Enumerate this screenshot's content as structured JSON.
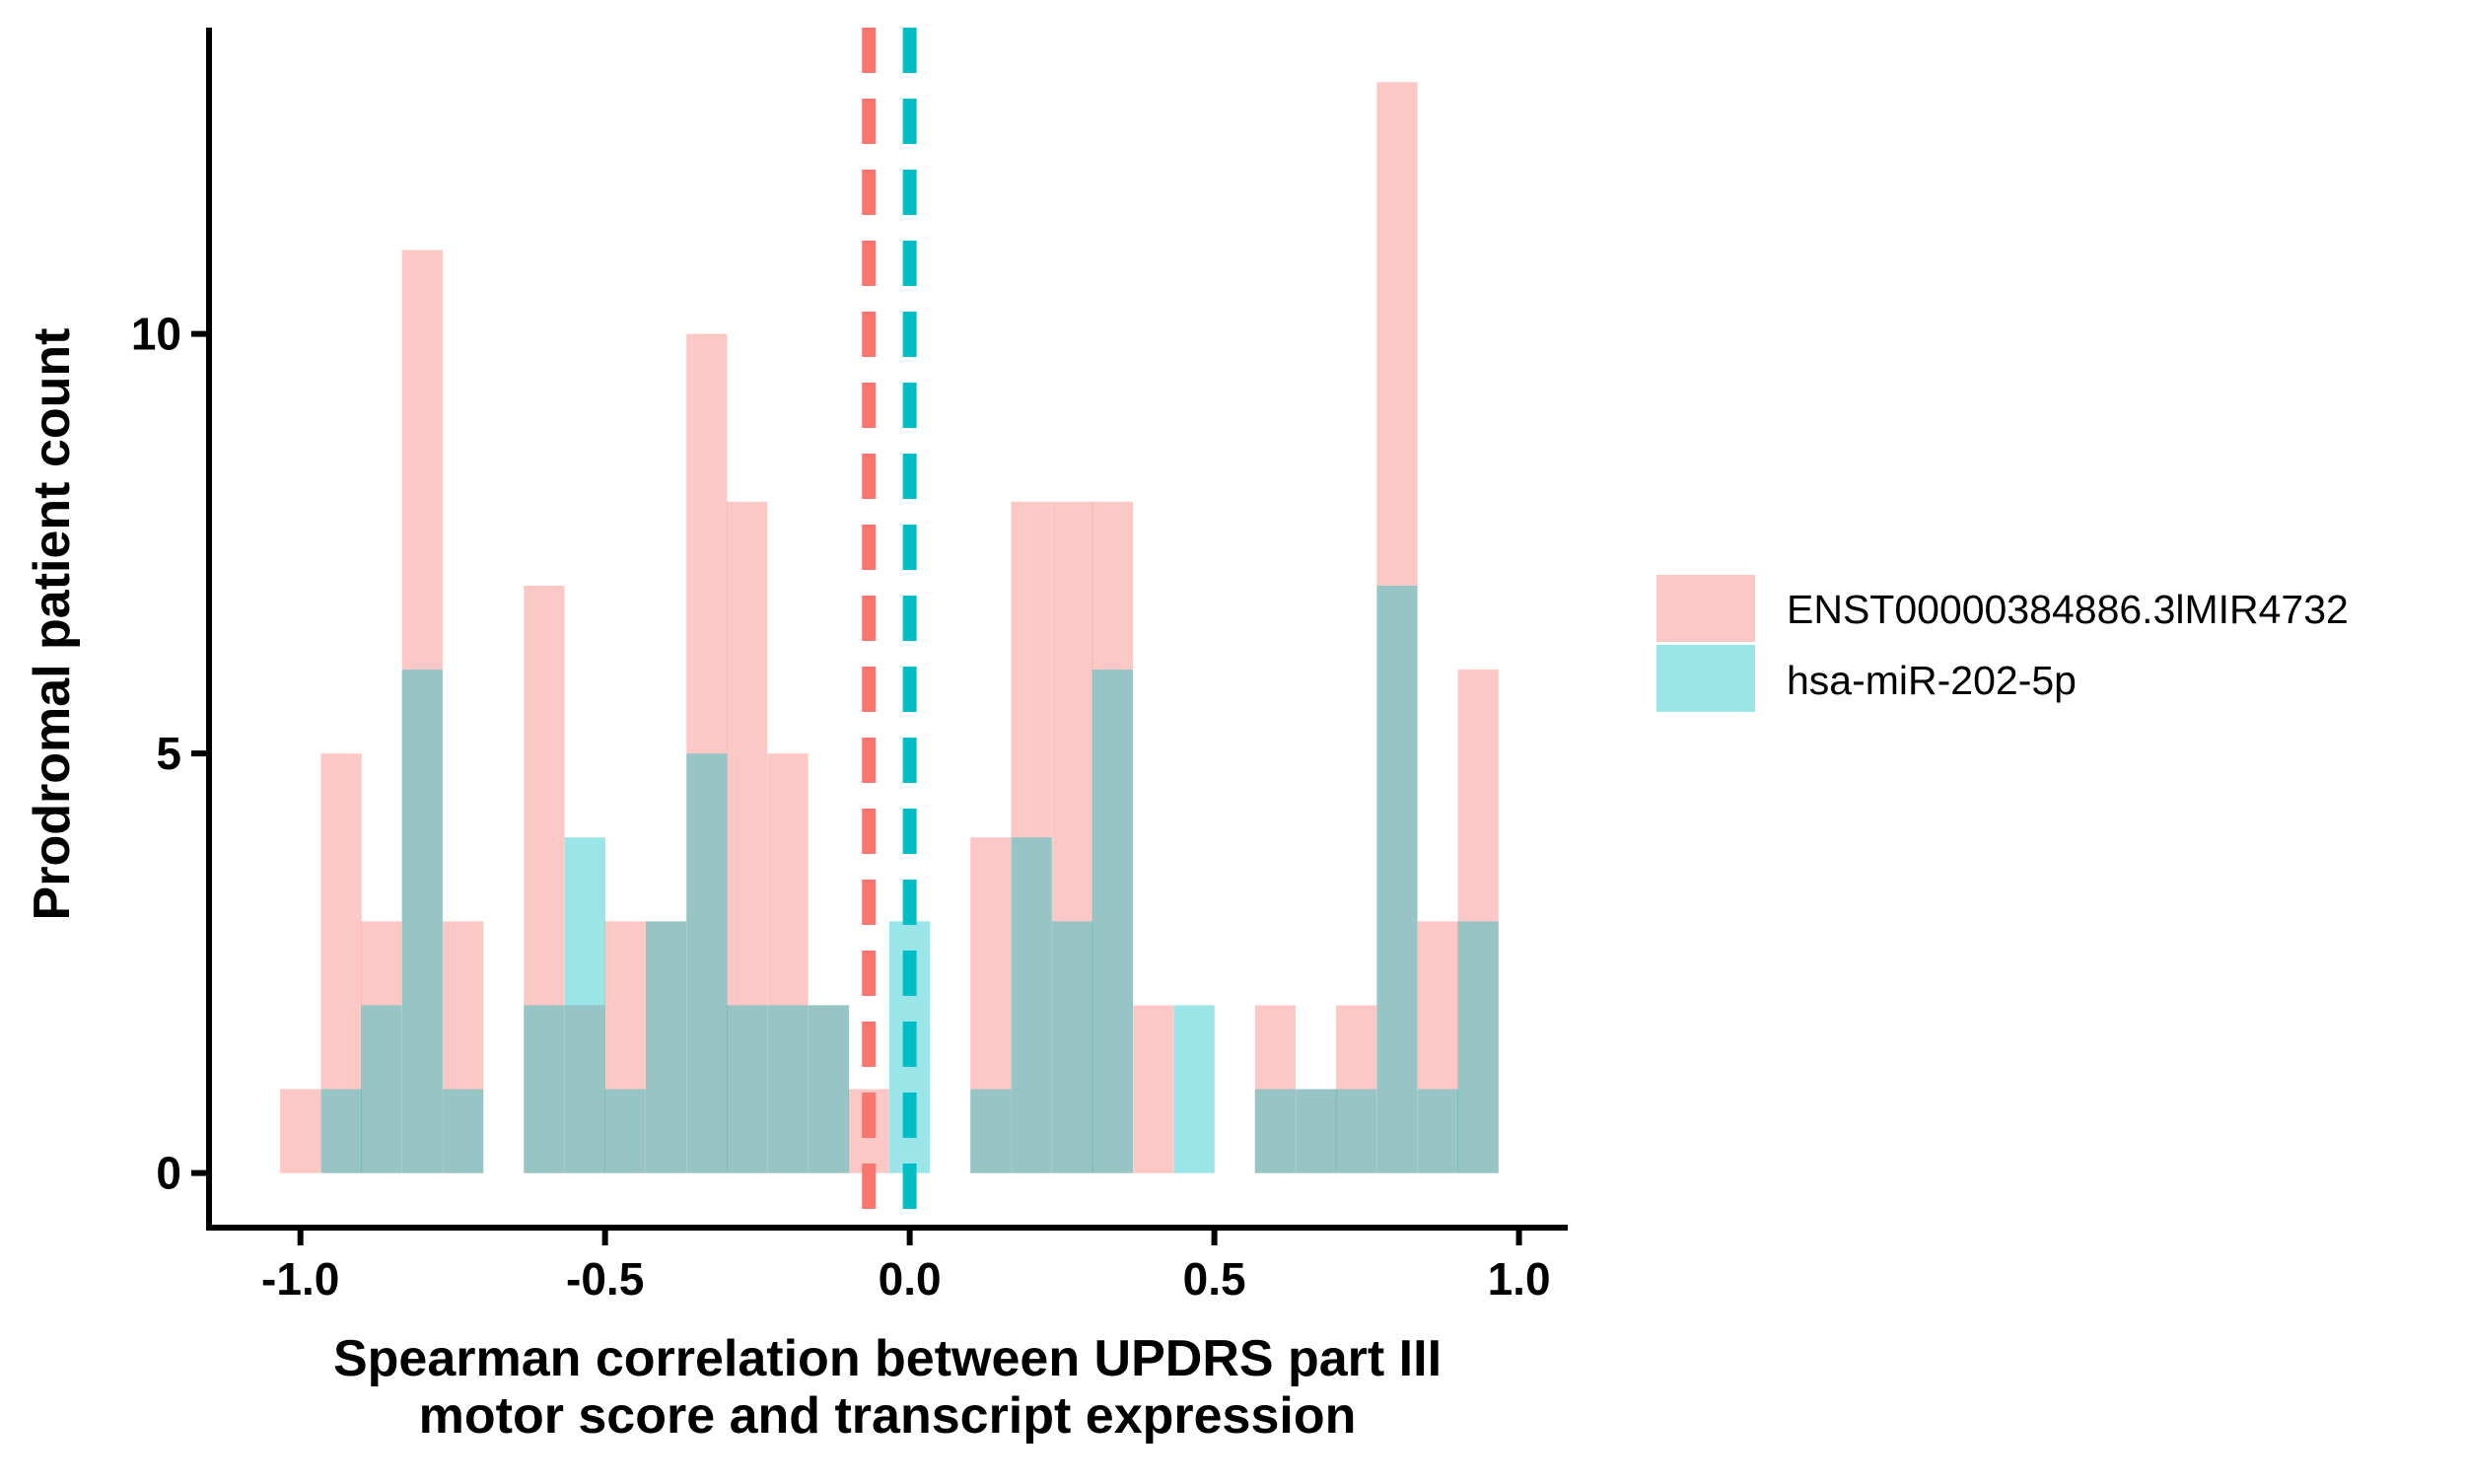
{
  "chart_data": {
    "type": "bar",
    "xlabel": [
      "Spearman correlation between UPDRS part III",
      "motor score and transcript expression"
    ],
    "ylabel": "Prodromal patient count",
    "xlim": [
      -1.15,
      1.08
    ],
    "ylim": [
      -0.65,
      13.65
    ],
    "xticks": [
      "-1.0",
      "-0.5",
      "0.0",
      "0.5",
      "1.0"
    ],
    "xtick_values": [
      -1.0,
      -0.5,
      0.0,
      0.5,
      1.0
    ],
    "yticks": [
      "0",
      "5",
      "10"
    ],
    "ytick_values": [
      0,
      5,
      10
    ],
    "grid": false,
    "legend_position": "right",
    "bin_width": 0.0667,
    "bin_centers": [
      -1.0,
      -0.933,
      -0.867,
      -0.8,
      -0.733,
      -0.667,
      -0.6,
      -0.533,
      -0.467,
      -0.4,
      -0.333,
      -0.267,
      -0.2,
      -0.133,
      -0.067,
      0.0,
      0.067,
      0.133,
      0.2,
      0.267,
      0.333,
      0.4,
      0.467,
      0.533,
      0.6,
      0.667,
      0.733,
      0.8,
      0.867,
      0.933
    ],
    "series": [
      {
        "name": "ENST00000384886.3lMIR4732",
        "color": "#F8766D",
        "counts": [
          1,
          5,
          3,
          11,
          3,
          0,
          7,
          2,
          3,
          3,
          10,
          8,
          5,
          2,
          1,
          0,
          0,
          4,
          8,
          8,
          8,
          2,
          0,
          0,
          2,
          1,
          2,
          13,
          3,
          6
        ],
        "mean_line": -0.067
      },
      {
        "name": "hsa-miR-202-5p",
        "color": "#00BFC4",
        "counts": [
          0,
          1,
          2,
          6,
          1,
          0,
          2,
          4,
          1,
          3,
          5,
          2,
          2,
          2,
          0,
          3,
          0,
          1,
          4,
          3,
          6,
          0,
          2,
          0,
          1,
          1,
          1,
          7,
          1,
          3
        ],
        "mean_line": 0.0
      }
    ]
  }
}
